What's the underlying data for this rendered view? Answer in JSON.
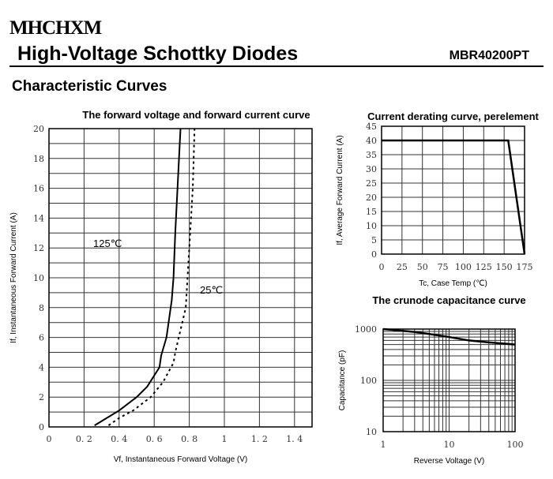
{
  "header": {
    "logo": "MHCHXM",
    "title": "High-Voltage Schottky Diodes",
    "part_number": "MBR40200PT"
  },
  "section_title": "Characteristic Curves",
  "chart_data": [
    {
      "type": "line",
      "title": "The forward voltage and forward current curve",
      "xlabel": "Vf, Instantaneous Forward Voltage (V)",
      "ylabel": "If, Instantaneous Forward Current (A)",
      "xlim": [
        0,
        1.5
      ],
      "ylim": [
        0,
        20
      ],
      "grid": true,
      "xticks": [
        "0",
        "0.2",
        "0.4",
        "0.6",
        "0.8",
        "1",
        "1.2",
        "1.4"
      ],
      "yticks": [
        "0",
        "2",
        "4",
        "6",
        "8",
        "10",
        "12",
        "14",
        "16",
        "18",
        "20"
      ],
      "series": [
        {
          "name": "125℃",
          "style": "solid",
          "x": [
            0.26,
            0.33,
            0.4,
            0.5,
            0.56,
            0.63,
            0.64,
            0.67,
            0.7,
            0.71,
            0.72,
            0.75
          ],
          "y": [
            0.1,
            0.6,
            1.1,
            2,
            2.7,
            4,
            4.8,
            6,
            8.5,
            10,
            13,
            20
          ]
        },
        {
          "name": "25℃",
          "style": "dotted",
          "x": [
            0.34,
            0.4,
            0.48,
            0.58,
            0.65,
            0.71,
            0.72,
            0.75,
            0.78,
            0.79,
            0.8,
            0.81,
            0.82,
            0.83
          ],
          "y": [
            0.1,
            0.6,
            1.1,
            2,
            3,
            4.3,
            5,
            6.5,
            8,
            10,
            12,
            14,
            16,
            20
          ]
        }
      ]
    },
    {
      "type": "line",
      "title": "Current derating curve, perelement",
      "xlabel": "Tc, Case Temp (℃)",
      "ylabel": "If, Average Forward Current (A)",
      "xlim": [
        0,
        175
      ],
      "ylim": [
        0,
        45
      ],
      "grid": true,
      "xticks": [
        "0",
        "25",
        "50",
        "75",
        "100",
        "125",
        "150",
        "175"
      ],
      "yticks": [
        "0",
        "5",
        "10",
        "15",
        "20",
        "25",
        "30",
        "35",
        "40",
        "45"
      ],
      "series": [
        {
          "x": [
            0,
            155,
            175
          ],
          "y": [
            40,
            40,
            0
          ]
        }
      ]
    },
    {
      "type": "line",
      "title": "The crunode capacitance curve",
      "xlabel": "Reverse Voltage (V)",
      "ylabel": "Capacitance (pF)",
      "xscale": "log",
      "yscale": "log",
      "xlim": [
        1,
        100
      ],
      "ylim": [
        10,
        1000
      ],
      "grid": true,
      "xticks": [
        "1",
        "10",
        "100"
      ],
      "yticks": [
        "10",
        "100",
        "1000"
      ],
      "series": [
        {
          "x": [
            1,
            3,
            5,
            10,
            20,
            40,
            100
          ],
          "y": [
            1000,
            880,
            800,
            700,
            600,
            550,
            500
          ]
        }
      ]
    }
  ]
}
